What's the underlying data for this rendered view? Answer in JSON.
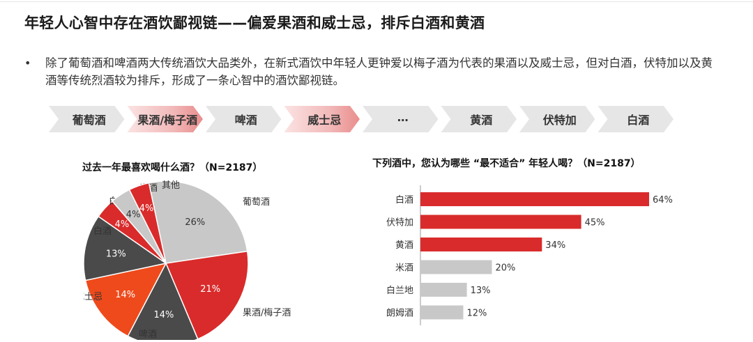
{
  "page": {
    "title": "年轻人心智中存在酒饮鄙视链——偏爱果酒和威士忌，排斥白酒和黄酒",
    "bullet_text": "除了葡萄酒和啤酒两大传统酒饮大品类外，在新式酒饮中年轻人更钟爱以梅子酒为代表的果酒以及威士忌，但对白酒，伏特加以及黄酒等传统烈酒较为排斥，形成了一条心智中的酒饮鄙视链。"
  },
  "chain": {
    "items": [
      {
        "label": "葡萄酒",
        "highlight": false
      },
      {
        "label": "果酒/梅子酒",
        "highlight": true
      },
      {
        "label": "啤酒",
        "highlight": false
      },
      {
        "label": "威士忌",
        "highlight": true
      },
      {
        "label": "…",
        "highlight": false
      },
      {
        "label": "黄酒",
        "highlight": false
      },
      {
        "label": "伏特加",
        "highlight": false
      },
      {
        "label": "白酒",
        "highlight": false
      }
    ]
  },
  "colors": {
    "red": "#d92b2b",
    "dark": "#4a4a4a",
    "orange": "#ee4a1c",
    "light_gray": "#c8c8c8",
    "chevron_gray": "#e6e6e6",
    "chevron_pink": "#f2b9b9"
  },
  "chart_data": [
    {
      "type": "pie",
      "title": "过去一年最喜欢喝什么酒？（N=2187）",
      "slices": [
        {
          "label": "葡萄酒",
          "value": 26,
          "value_label": "26%",
          "color": "#c8c8c8"
        },
        {
          "label": "果酒/梅子酒",
          "value": 21,
          "value_label": "21%",
          "color": "#d92b2b"
        },
        {
          "label": "啤酒",
          "value": 14,
          "value_label": "14%",
          "color": "#4a4a4a"
        },
        {
          "label": "威士忌",
          "value": 14,
          "value_label": "14%",
          "color": "#ee4a1c"
        },
        {
          "label": "白酒",
          "value": 13,
          "value_label": "13%",
          "color": "#4a4a4a"
        },
        {
          "label": "白兰地",
          "value": 4,
          "value_label": "4%",
          "color": "#d92b2b"
        },
        {
          "label": "米酒",
          "value": 4,
          "value_label": "4%",
          "color": "#c8c8c8"
        },
        {
          "label": "其他",
          "value": 4,
          "value_label": "4%",
          "color": "#d92b2b"
        }
      ]
    },
    {
      "type": "bar",
      "orientation": "horizontal",
      "title": "下列酒中，您认为哪些 “最不适合” 年轻人喝？（N=2187）",
      "categories": [
        "白酒",
        "伏特加",
        "黄酒",
        "米酒",
        "白兰地",
        "朗姆酒"
      ],
      "values": [
        64,
        45,
        34,
        20,
        13,
        12
      ],
      "value_labels": [
        "64%",
        "45%",
        "34%",
        "20%",
        "13%",
        "12%"
      ],
      "bar_colors": [
        "#d92b2b",
        "#d92b2b",
        "#d92b2b",
        "#c8c8c8",
        "#c8c8c8",
        "#c8c8c8"
      ],
      "xlim": [
        0,
        64
      ]
    }
  ]
}
